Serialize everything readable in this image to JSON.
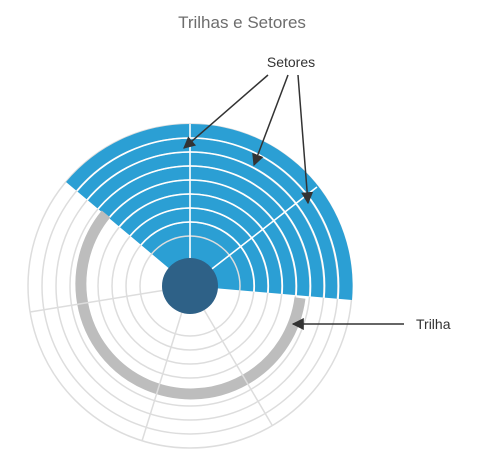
{
  "title": "Trilhas e Setores",
  "labels": {
    "sectors": "Setores",
    "track": "Trilha"
  },
  "colors": {
    "sector_fill": "#2b9fd4",
    "grid_line": "#dddddd",
    "track_highlight": "#bdbdbd",
    "hub": "#2e6187",
    "title_text": "#6d6d6d",
    "label_text": "#333333",
    "arrow": "#333333"
  }
}
